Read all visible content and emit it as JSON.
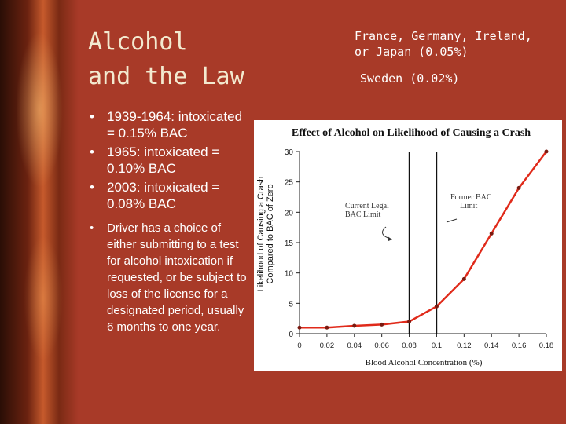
{
  "slide": {
    "title_line1": "Alcohol",
    "title_line2": "and the Law",
    "note_line1": "France, Germany, Ireland,",
    "note_line2": "or Japan (0.05%)",
    "note_line3": "Sweden (0.02%)",
    "bullets": [
      "1939-1964: intoxicated = 0.15% BAC",
      "1965: intoxicated = 0.10% BAC",
      "2003: intoxicated = 0.08% BAC",
      "Driver has a choice of either submitting to a test for alcohol intoxication if requested, or be subject to loss of the license for a designated period, usually 6 months to one year."
    ]
  },
  "chart_data": {
    "type": "line",
    "title": "Effect of Alcohol on Likelihood of Causing a Crash",
    "xlabel": "Blood Alcohol Concentration (%)",
    "ylabel_line1": "Likelihood of Causing a Crash",
    "ylabel_line2": "Compared to BAC of Zero",
    "xlim": [
      0,
      0.18
    ],
    "ylim": [
      0,
      30
    ],
    "x_ticks": [
      "0",
      "0.02",
      "0.04",
      "0.06",
      "0.08",
      "0.1",
      "0.12",
      "0.14",
      "0.16",
      "0.18"
    ],
    "y_ticks": [
      "0",
      "5",
      "10",
      "15",
      "20",
      "25",
      "30"
    ],
    "grid": false,
    "series": [
      {
        "color": "#e02a1a",
        "x": [
          0,
          0.02,
          0.04,
          0.06,
          0.08,
          0.1,
          0.12,
          0.14,
          0.16,
          0.18
        ],
        "y": [
          1.0,
          1.0,
          1.3,
          1.5,
          2.0,
          4.5,
          9.0,
          16.5,
          24.0,
          30.0
        ]
      }
    ],
    "reference_lines": [
      {
        "x": 0.08,
        "label_line1": "Current Legal",
        "label_line2": "BAC Limit"
      },
      {
        "x": 0.1,
        "label_line1": "Former BAC",
        "label_line2": "Limit"
      }
    ]
  }
}
